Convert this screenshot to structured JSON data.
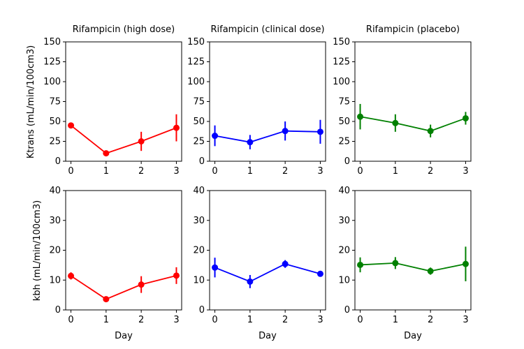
{
  "chart_data": [
    {
      "type": "line",
      "title": "Rifampicin (high dose)",
      "xlabel": "",
      "ylabel": "Ktrans (mL/min/100cm3)",
      "color": "#ff0000",
      "x": [
        0,
        1,
        2,
        3
      ],
      "y": [
        45,
        10,
        25,
        42
      ],
      "err": [
        3,
        2,
        12,
        17
      ],
      "xlim": [
        -0.15,
        3.15
      ],
      "ylim": [
        0,
        150
      ],
      "xticks": [
        "0",
        "1",
        "2",
        "3"
      ],
      "yticks": [
        "0",
        "25",
        "50",
        "75",
        "100",
        "125",
        "150"
      ]
    },
    {
      "type": "line",
      "title": "Rifampicin (clinical dose)",
      "xlabel": "",
      "ylabel": "",
      "color": "#0000ff",
      "x": [
        0,
        1,
        2,
        3
      ],
      "y": [
        32,
        24,
        38,
        37
      ],
      "err": [
        13,
        9,
        12,
        15
      ],
      "xlim": [
        -0.15,
        3.15
      ],
      "ylim": [
        0,
        150
      ],
      "xticks": [
        "0",
        "1",
        "2",
        "3"
      ],
      "yticks": [
        "0",
        "25",
        "50",
        "75",
        "100",
        "125",
        "150"
      ]
    },
    {
      "type": "line",
      "title": "Rifampicin (placebo)",
      "xlabel": "",
      "ylabel": "",
      "color": "#008000",
      "x": [
        0,
        1,
        2,
        3
      ],
      "y": [
        56,
        48,
        38,
        54
      ],
      "err": [
        16,
        11,
        8,
        8
      ],
      "xlim": [
        -0.15,
        3.15
      ],
      "ylim": [
        0,
        150
      ],
      "xticks": [
        "0",
        "1",
        "2",
        "3"
      ],
      "yticks": [
        "0",
        "25",
        "50",
        "75",
        "100",
        "125",
        "150"
      ]
    },
    {
      "type": "line",
      "title": "",
      "xlabel": "Day",
      "ylabel": "kbh (mL/min/100cm3)",
      "color": "#ff0000",
      "x": [
        0,
        1,
        2,
        3
      ],
      "y": [
        11.4,
        3.6,
        8.5,
        11.5
      ],
      "err": [
        1.2,
        0.8,
        2.8,
        2.8
      ],
      "xlim": [
        -0.15,
        3.15
      ],
      "ylim": [
        0,
        40
      ],
      "xticks": [
        "0",
        "1",
        "2",
        "3"
      ],
      "yticks": [
        "0",
        "10",
        "20",
        "30",
        "40"
      ]
    },
    {
      "type": "line",
      "title": "",
      "xlabel": "Day",
      "ylabel": "",
      "color": "#0000ff",
      "x": [
        0,
        1,
        2,
        3
      ],
      "y": [
        14.2,
        9.5,
        15.4,
        12.1
      ],
      "err": [
        3.3,
        2.2,
        1.3,
        0.8
      ],
      "xlim": [
        -0.15,
        3.15
      ],
      "ylim": [
        0,
        40
      ],
      "xticks": [
        "0",
        "1",
        "2",
        "3"
      ],
      "yticks": [
        "0",
        "10",
        "20",
        "30",
        "40"
      ]
    },
    {
      "type": "line",
      "title": "",
      "xlabel": "Day",
      "ylabel": "",
      "color": "#008000",
      "x": [
        0,
        1,
        2,
        3
      ],
      "y": [
        15.1,
        15.7,
        13.0,
        15.4
      ],
      "err": [
        2.5,
        2.0,
        1.2,
        5.8
      ],
      "xlim": [
        -0.15,
        3.15
      ],
      "ylim": [
        0,
        40
      ],
      "xticks": [
        "0",
        "1",
        "2",
        "3"
      ],
      "yticks": [
        "0",
        "10",
        "20",
        "30",
        "40"
      ]
    }
  ]
}
